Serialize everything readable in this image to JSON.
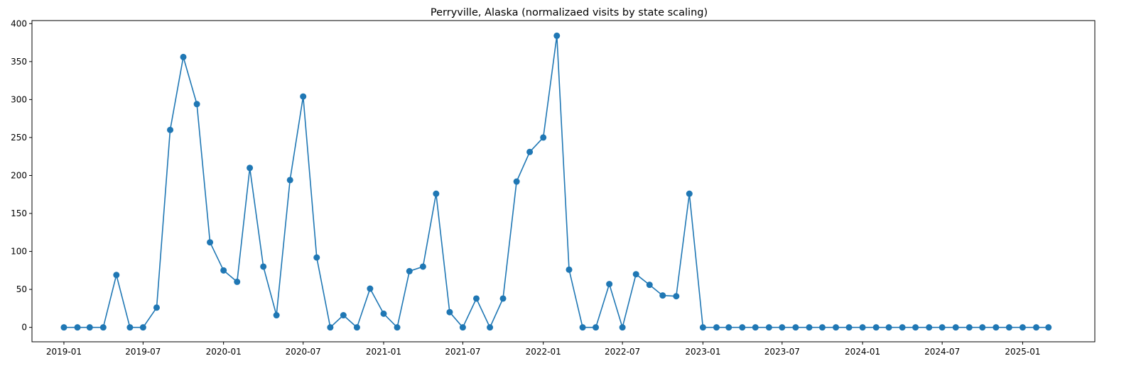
{
  "chart_data": {
    "type": "line",
    "title": "Perryville, Alaska (normalizaed visits by state scaling)",
    "xlabel": "",
    "ylabel": "",
    "ylim": [
      -19,
      404
    ],
    "xlim": [
      "2018-10-20",
      "2025-06-15"
    ],
    "grid": false,
    "legend": "none",
    "colors": {
      "line": "#1f77b4",
      "marker": "#1f77b4"
    },
    "x_ticks": [
      "2019-01",
      "2019-07",
      "2020-01",
      "2020-07",
      "2021-01",
      "2021-07",
      "2022-01",
      "2022-07",
      "2023-01",
      "2023-07",
      "2024-01",
      "2024-07",
      "2025-01"
    ],
    "y_ticks": [
      0,
      50,
      100,
      150,
      200,
      250,
      300,
      350,
      400
    ],
    "series": [
      {
        "x": [
          "2019-01",
          "2019-02",
          "2019-03",
          "2019-04",
          "2019-05",
          "2019-06",
          "2019-07",
          "2019-08",
          "2019-09",
          "2019-10",
          "2019-11",
          "2019-12",
          "2020-01",
          "2020-02",
          "2020-03",
          "2020-04",
          "2020-05",
          "2020-06",
          "2020-07",
          "2020-08",
          "2020-09",
          "2020-10",
          "2020-11",
          "2020-12",
          "2021-01",
          "2021-02",
          "2021-03",
          "2021-04",
          "2021-05",
          "2021-06",
          "2021-07",
          "2021-08",
          "2021-09",
          "2021-10",
          "2021-11",
          "2021-12",
          "2022-01",
          "2022-02",
          "2022-03",
          "2022-04",
          "2022-05",
          "2022-06",
          "2022-07",
          "2022-08",
          "2022-09",
          "2022-10",
          "2022-11",
          "2022-12",
          "2023-01",
          "2023-02",
          "2023-03",
          "2023-04",
          "2023-05",
          "2023-06",
          "2023-07",
          "2023-08",
          "2023-09",
          "2023-10",
          "2023-11",
          "2023-12",
          "2024-01",
          "2024-02",
          "2024-03",
          "2024-04",
          "2024-05",
          "2024-06",
          "2024-07",
          "2024-08",
          "2024-09",
          "2024-10",
          "2024-11",
          "2024-12",
          "2025-01",
          "2025-02",
          "2025-03"
        ],
        "values": [
          0,
          0,
          0,
          0,
          69,
          0,
          0,
          26,
          260,
          356,
          294,
          112,
          75,
          60,
          210,
          80,
          16,
          194,
          304,
          92,
          0,
          16,
          0,
          51,
          18,
          0,
          74,
          80,
          176,
          20,
          0,
          38,
          0,
          38,
          192,
          231,
          250,
          384,
          76,
          0,
          0,
          57,
          0,
          70,
          56,
          42,
          41,
          176,
          0,
          0,
          0,
          0,
          0,
          0,
          0,
          0,
          0,
          0,
          0,
          0,
          0,
          0,
          0,
          0,
          0,
          0,
          0,
          0,
          0,
          0,
          0,
          0,
          0,
          0,
          0
        ]
      }
    ]
  }
}
